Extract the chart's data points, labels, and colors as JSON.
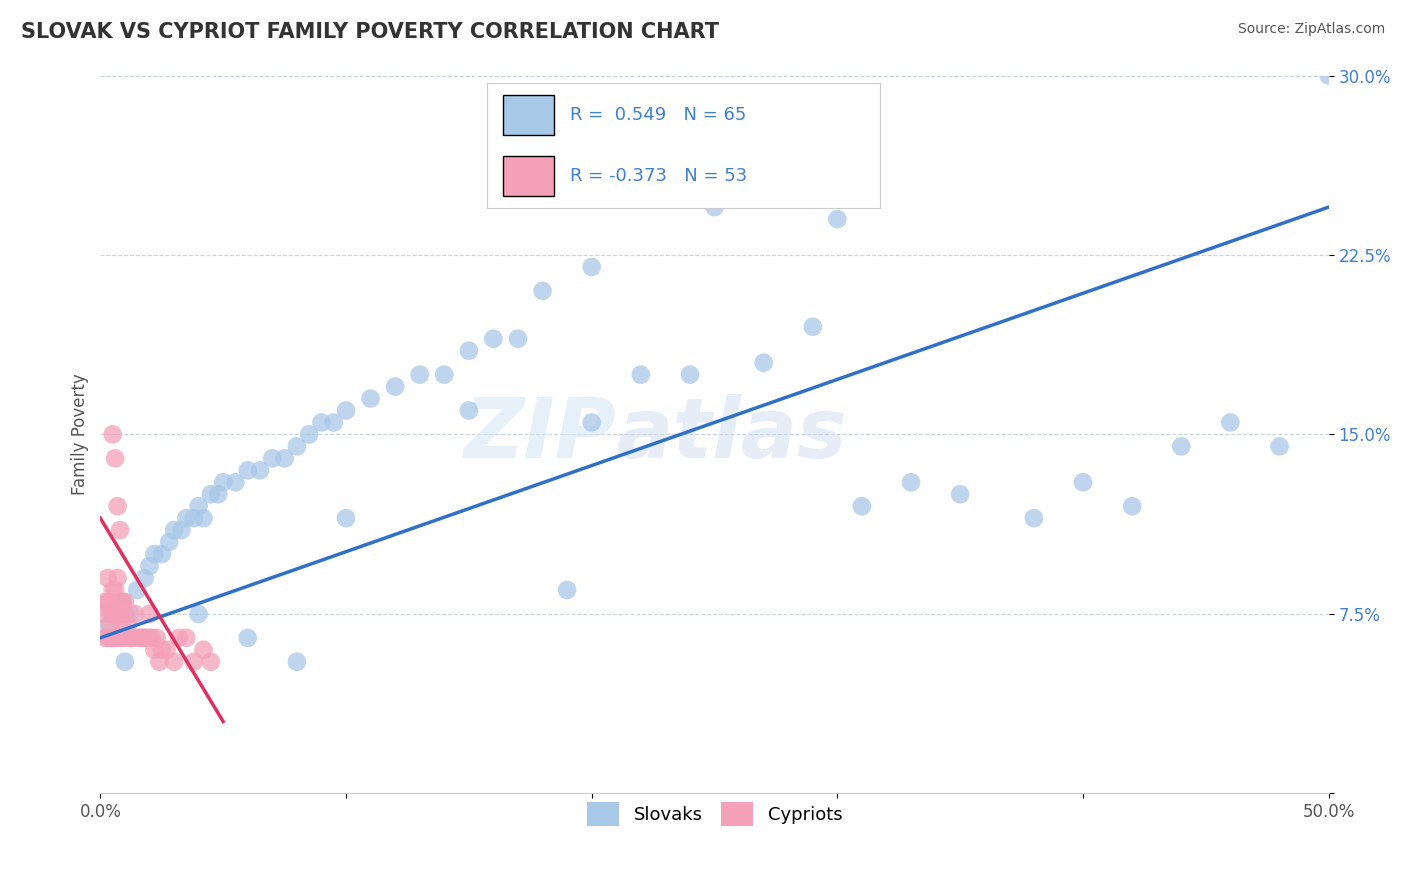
{
  "title": "SLOVAK VS CYPRIOT FAMILY POVERTY CORRELATION CHART",
  "source": "Source: ZipAtlas.com",
  "ylabel": "Family Poverty",
  "xlim": [
    0.0,
    0.5
  ],
  "ylim": [
    0.0,
    0.3
  ],
  "xticks": [
    0.0,
    0.1,
    0.2,
    0.3,
    0.4,
    0.5
  ],
  "xticklabels": [
    "0.0%",
    "",
    "",
    "",
    "",
    "50.0%"
  ],
  "yticks": [
    0.0,
    0.075,
    0.15,
    0.225,
    0.3
  ],
  "yticklabels": [
    "",
    "7.5%",
    "15.0%",
    "22.5%",
    "30.0%"
  ],
  "slovak_R": 0.549,
  "slovak_N": 65,
  "cypriot_R": -0.373,
  "cypriot_N": 53,
  "slovak_color": "#A8C8E8",
  "cypriot_color": "#F4A0B8",
  "line_slovak_color": "#3070C8",
  "line_cypriot_color": "#E03060",
  "tick_color": "#4080D0",
  "watermark_text": "ZIP",
  "watermark_text2": "atlas",
  "legend_slovak_label": "Slovaks",
  "legend_cypriot_label": "Cypriots",
  "slovak_line_x0": 0.0,
  "slovak_line_y0": 0.065,
  "slovak_line_x1": 0.5,
  "slovak_line_y1": 0.245,
  "cypriot_line_x0": 0.0,
  "cypriot_line_y0": 0.115,
  "cypriot_line_x1": 0.05,
  "cypriot_line_y1": 0.03,
  "slovak_x": [
    0.003,
    0.005,
    0.007,
    0.009,
    0.012,
    0.015,
    0.018,
    0.02,
    0.022,
    0.025,
    0.028,
    0.03,
    0.033,
    0.035,
    0.038,
    0.04,
    0.042,
    0.045,
    0.048,
    0.05,
    0.055,
    0.06,
    0.065,
    0.07,
    0.075,
    0.08,
    0.085,
    0.09,
    0.095,
    0.1,
    0.11,
    0.12,
    0.13,
    0.14,
    0.15,
    0.16,
    0.17,
    0.18,
    0.19,
    0.2,
    0.22,
    0.24,
    0.25,
    0.27,
    0.29,
    0.31,
    0.33,
    0.35,
    0.38,
    0.4,
    0.42,
    0.44,
    0.46,
    0.48,
    0.25,
    0.3,
    0.2,
    0.15,
    0.1,
    0.08,
    0.06,
    0.04,
    0.02,
    0.01,
    0.5
  ],
  "slovak_y": [
    0.07,
    0.065,
    0.075,
    0.08,
    0.075,
    0.085,
    0.09,
    0.095,
    0.1,
    0.1,
    0.105,
    0.11,
    0.11,
    0.115,
    0.115,
    0.12,
    0.115,
    0.125,
    0.125,
    0.13,
    0.13,
    0.135,
    0.135,
    0.14,
    0.14,
    0.145,
    0.15,
    0.155,
    0.155,
    0.16,
    0.165,
    0.17,
    0.175,
    0.175,
    0.185,
    0.19,
    0.19,
    0.21,
    0.085,
    0.155,
    0.175,
    0.175,
    0.245,
    0.18,
    0.195,
    0.12,
    0.13,
    0.125,
    0.115,
    0.13,
    0.12,
    0.145,
    0.155,
    0.145,
    0.26,
    0.24,
    0.22,
    0.16,
    0.115,
    0.055,
    0.065,
    0.075,
    0.065,
    0.055,
    0.3
  ],
  "cypriot_x": [
    0.001,
    0.002,
    0.002,
    0.003,
    0.003,
    0.003,
    0.004,
    0.004,
    0.004,
    0.004,
    0.005,
    0.005,
    0.005,
    0.006,
    0.006,
    0.006,
    0.007,
    0.007,
    0.007,
    0.008,
    0.008,
    0.008,
    0.009,
    0.009,
    0.01,
    0.01,
    0.01,
    0.011,
    0.012,
    0.013,
    0.014,
    0.015,
    0.016,
    0.017,
    0.018,
    0.019,
    0.02,
    0.021,
    0.022,
    0.023,
    0.024,
    0.025,
    0.027,
    0.03,
    0.032,
    0.035,
    0.038,
    0.042,
    0.045,
    0.005,
    0.006,
    0.007,
    0.008
  ],
  "cypriot_y": [
    0.075,
    0.065,
    0.08,
    0.065,
    0.08,
    0.09,
    0.07,
    0.075,
    0.065,
    0.08,
    0.065,
    0.075,
    0.085,
    0.065,
    0.075,
    0.085,
    0.065,
    0.075,
    0.09,
    0.065,
    0.08,
    0.075,
    0.07,
    0.08,
    0.065,
    0.075,
    0.08,
    0.07,
    0.065,
    0.065,
    0.075,
    0.065,
    0.065,
    0.065,
    0.065,
    0.065,
    0.075,
    0.065,
    0.06,
    0.065,
    0.055,
    0.06,
    0.06,
    0.055,
    0.065,
    0.065,
    0.055,
    0.06,
    0.055,
    0.15,
    0.14,
    0.12,
    0.11
  ]
}
